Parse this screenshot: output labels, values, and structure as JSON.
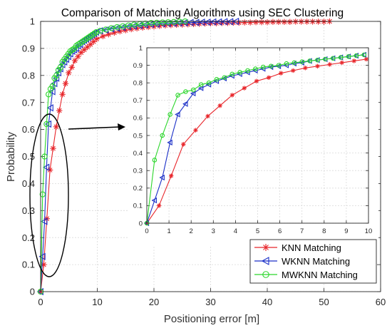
{
  "chart_data": [
    {
      "type": "line",
      "title": "Comparison of Matching Algorithms using SEC Clustering",
      "xlabel": "Positioning error [m]",
      "ylabel": "Probability",
      "xlim": [
        0,
        60
      ],
      "ylim": [
        0,
        1
      ],
      "x_ticks": [
        "0",
        "10",
        "20",
        "30",
        "40",
        "50",
        "60"
      ],
      "y_ticks": [
        "0",
        "0.1",
        "0.2",
        "0.3",
        "0.4",
        "0.5",
        "0.6",
        "0.7",
        "0.8",
        "0.9",
        "1"
      ],
      "grid": true,
      "legend_position": "lower-right",
      "series": [
        {
          "name": "KNN Matching",
          "color": "#e8262b",
          "marker": "asterisk",
          "x": [
            0,
            0.55,
            1.1,
            1.65,
            2.2,
            2.75,
            3.3,
            3.85,
            4.4,
            4.95,
            5.5,
            6.05,
            6.6,
            7.15,
            7.7,
            8.25,
            8.8,
            9.35,
            9.9,
            11,
            12,
            13,
            14,
            15,
            16,
            17,
            18,
            19,
            20,
            21,
            22,
            23,
            24,
            25,
            26,
            27,
            28,
            29,
            30,
            31,
            32,
            33,
            34,
            35,
            36,
            37,
            38,
            39,
            40,
            41,
            42,
            43,
            44,
            45,
            46,
            47,
            48,
            49,
            50,
            51
          ],
          "y": [
            0,
            0.1,
            0.27,
            0.45,
            0.53,
            0.61,
            0.67,
            0.73,
            0.77,
            0.81,
            0.83,
            0.855,
            0.87,
            0.885,
            0.895,
            0.905,
            0.915,
            0.925,
            0.935,
            0.945,
            0.952,
            0.958,
            0.963,
            0.967,
            0.971,
            0.974,
            0.977,
            0.979,
            0.981,
            0.983,
            0.985,
            0.986,
            0.987,
            0.988,
            0.989,
            0.99,
            0.991,
            0.992,
            0.993,
            0.993,
            0.994,
            0.994,
            0.995,
            0.995,
            0.996,
            0.996,
            0.997,
            0.997,
            0.997,
            0.998,
            0.998,
            0.998,
            0.998,
            0.999,
            0.999,
            0.999,
            0.999,
            0.999,
            0.999,
            1.0
          ]
        },
        {
          "name": "WKNN Matching",
          "color": "#1a2fc7",
          "marker": "triangle-left",
          "x": [
            0,
            0.35,
            0.7,
            1.05,
            1.4,
            1.75,
            2.1,
            2.45,
            2.8,
            3.15,
            3.5,
            3.85,
            4.2,
            4.55,
            4.9,
            5.25,
            5.6,
            5.95,
            6.3,
            6.65,
            7.0,
            7.35,
            7.7,
            8.05,
            8.4,
            8.75,
            9.1,
            9.45,
            9.8,
            10.5,
            11.5,
            12.5,
            13.5,
            14.5,
            15.5,
            16.5,
            17.5,
            18.5,
            19.5,
            20.5,
            21.5,
            22.5,
            23.5,
            24.5,
            25.5,
            26.5,
            27.5,
            28.5,
            29.5,
            30.5,
            31.5,
            32.5,
            33.5,
            34.5
          ],
          "y": [
            0,
            0.13,
            0.26,
            0.46,
            0.62,
            0.68,
            0.74,
            0.77,
            0.79,
            0.81,
            0.825,
            0.84,
            0.85,
            0.86,
            0.87,
            0.88,
            0.89,
            0.895,
            0.9,
            0.91,
            0.915,
            0.925,
            0.93,
            0.935,
            0.94,
            0.945,
            0.95,
            0.955,
            0.96,
            0.965,
            0.968,
            0.972,
            0.975,
            0.978,
            0.981,
            0.983,
            0.985,
            0.987,
            0.989,
            0.99,
            0.991,
            0.992,
            0.993,
            0.994,
            0.995,
            0.996,
            0.996,
            0.997,
            0.997,
            0.998,
            0.998,
            0.999,
            0.999,
            1.0
          ]
        },
        {
          "name": "MWKNN Matching",
          "color": "#2bd62b",
          "marker": "circle",
          "x": [
            0,
            0.35,
            0.7,
            1.05,
            1.4,
            1.75,
            2.1,
            2.45,
            2.8,
            3.15,
            3.5,
            3.85,
            4.2,
            4.55,
            4.9,
            5.25,
            5.6,
            5.95,
            6.3,
            6.65,
            7.0,
            7.35,
            7.7,
            8.05,
            8.4,
            8.75,
            9.1,
            9.45,
            9.8,
            10.5,
            11.5,
            12.5,
            13.5,
            14.5,
            15.5,
            16.5,
            17.5,
            18.5,
            19.5,
            20.5,
            21.5,
            22.5,
            23.5,
            24.5,
            25.5
          ],
          "y": [
            0,
            0.36,
            0.5,
            0.62,
            0.73,
            0.75,
            0.76,
            0.79,
            0.8,
            0.82,
            0.83,
            0.85,
            0.86,
            0.87,
            0.88,
            0.89,
            0.895,
            0.9,
            0.91,
            0.915,
            0.92,
            0.925,
            0.93,
            0.935,
            0.94,
            0.945,
            0.95,
            0.955,
            0.96,
            0.965,
            0.97,
            0.975,
            0.979,
            0.982,
            0.985,
            0.988,
            0.99,
            0.992,
            0.994,
            0.995,
            0.996,
            0.997,
            0.998,
            0.999,
            1.0
          ]
        }
      ]
    },
    {
      "type": "line",
      "title": "",
      "xlabel": "",
      "ylabel": "",
      "xlim": [
        0,
        10
      ],
      "ylim": [
        0,
        1
      ],
      "x_ticks": [
        "0",
        "1",
        "2",
        "3",
        "4",
        "5",
        "6",
        "7",
        "8",
        "9",
        "10"
      ],
      "y_ticks": [
        "0",
        "0.1",
        "0.2",
        "0.3",
        "0.4",
        "0.5",
        "0.6",
        "0.7",
        "0.8",
        "0.9",
        "1"
      ],
      "grid": true,
      "series": [
        {
          "color": "#e8262b",
          "marker": "asterisk",
          "x": [
            0,
            0.55,
            1.1,
            1.65,
            2.2,
            2.75,
            3.3,
            3.85,
            4.4,
            4.95,
            5.5,
            6.05,
            6.6,
            7.15,
            7.7,
            8.25,
            8.8,
            9.35,
            9.9
          ],
          "y": [
            0,
            0.1,
            0.27,
            0.45,
            0.53,
            0.61,
            0.67,
            0.73,
            0.77,
            0.81,
            0.83,
            0.855,
            0.87,
            0.885,
            0.895,
            0.905,
            0.915,
            0.925,
            0.935
          ]
        },
        {
          "color": "#1a2fc7",
          "marker": "triangle-left",
          "x": [
            0,
            0.35,
            0.7,
            1.05,
            1.4,
            1.75,
            2.1,
            2.45,
            2.8,
            3.15,
            3.5,
            3.85,
            4.2,
            4.55,
            4.9,
            5.25,
            5.6,
            5.95,
            6.3,
            6.65,
            7.0,
            7.35,
            7.7,
            8.05,
            8.4,
            8.75,
            9.1,
            9.45,
            9.8
          ],
          "y": [
            0,
            0.13,
            0.26,
            0.46,
            0.62,
            0.68,
            0.74,
            0.77,
            0.79,
            0.81,
            0.825,
            0.84,
            0.85,
            0.86,
            0.87,
            0.88,
            0.89,
            0.895,
            0.9,
            0.91,
            0.915,
            0.925,
            0.93,
            0.935,
            0.94,
            0.945,
            0.95,
            0.955,
            0.96
          ]
        },
        {
          "color": "#2bd62b",
          "marker": "circle",
          "x": [
            0,
            0.35,
            0.7,
            1.05,
            1.4,
            1.75,
            2.1,
            2.45,
            2.8,
            3.15,
            3.5,
            3.85,
            4.2,
            4.55,
            4.9,
            5.25,
            5.6,
            5.95,
            6.3,
            6.65,
            7.0,
            7.35,
            7.7,
            8.05,
            8.4,
            8.75,
            9.1,
            9.45,
            9.8
          ],
          "y": [
            0,
            0.36,
            0.5,
            0.62,
            0.73,
            0.75,
            0.76,
            0.79,
            0.8,
            0.82,
            0.83,
            0.85,
            0.86,
            0.87,
            0.88,
            0.89,
            0.895,
            0.9,
            0.91,
            0.915,
            0.92,
            0.925,
            0.93,
            0.935,
            0.94,
            0.945,
            0.95,
            0.955,
            0.96
          ]
        }
      ]
    }
  ]
}
